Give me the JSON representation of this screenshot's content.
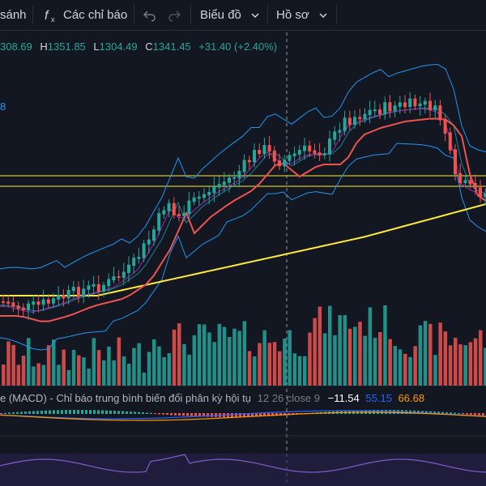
{
  "toolbar": {
    "compare_label": "sánh",
    "indicators_label": "Các chỉ báo",
    "chart_label": "Biểu đồ",
    "profile_label": "Hồ sơ"
  },
  "ohlc": {
    "open": "308.69",
    "high_label": "H",
    "high": "1351.85",
    "low_label": "L",
    "low": "1304.49",
    "close_label": "C",
    "close": "1341.45",
    "change": "+31.40 (+2.40%)"
  },
  "side_label": "8",
  "macd": {
    "title": "e (MACD) - Chỉ báo trung bình biến đổi phân kỳ hội tụ",
    "params": "12 26 close 9",
    "hist": "−11.54",
    "macd": "55.15",
    "signal": "66.68"
  },
  "colors": {
    "up": "#26a69a",
    "down": "#ef5350",
    "ma_fast": "#ef5350",
    "ma_slow": "#ffeb3b",
    "bollinger": "#2196f3",
    "macd_line": "#2962ff",
    "signal_line": "#ff9800",
    "rsi": "#7e57c2"
  },
  "chart_data": {
    "type": "line",
    "title": "",
    "x": [],
    "series": []
  }
}
